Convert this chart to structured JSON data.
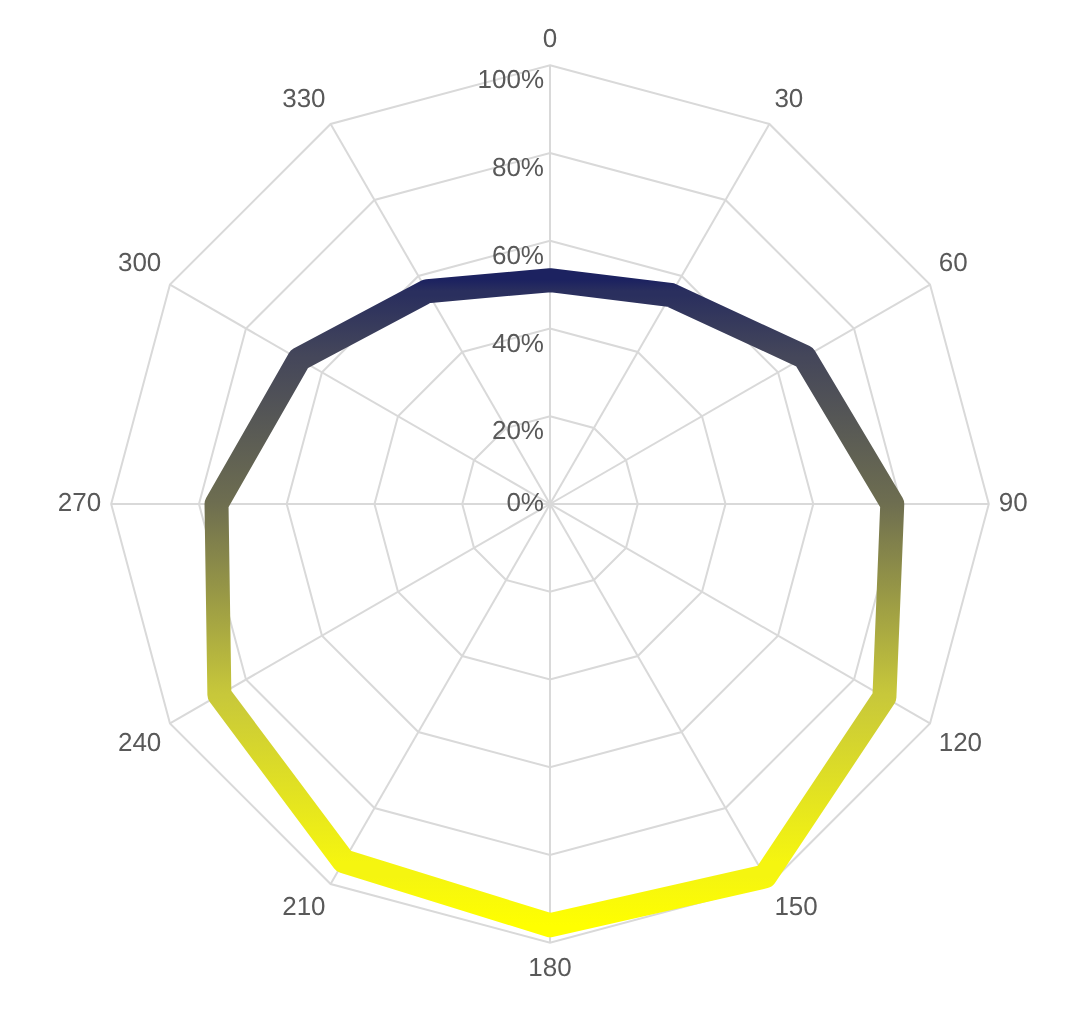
{
  "chart_data": {
    "type": "radar",
    "categories": [
      "0",
      "30",
      "60",
      "90",
      "120",
      "150",
      "180",
      "210",
      "240",
      "270",
      "300",
      "330"
    ],
    "series": [
      {
        "colors": [
          "#1c2260",
          "#2a2f5e",
          "#45475a",
          "#6e6e50",
          "#c8c83a",
          "#f5f510",
          "#ffff00",
          "#f5f510",
          "#c8c83a",
          "#6e6e50",
          "#45475a",
          "#2a2f5e"
        ],
        "values": [
          51,
          55,
          67,
          78,
          88,
          98,
          96,
          94,
          87,
          76,
          66,
          56
        ]
      }
    ],
    "ylim": [
      0,
      100
    ],
    "yticks": [
      {
        "value": 0,
        "label": "0%"
      },
      {
        "value": 20,
        "label": "20%"
      },
      {
        "value": 40,
        "label": "40%"
      },
      {
        "value": 60,
        "label": "60%"
      },
      {
        "value": 80,
        "label": "80%"
      },
      {
        "value": 100,
        "label": "100%"
      }
    ],
    "grid": true,
    "legend": false,
    "marker": "none",
    "line_style": "solid"
  }
}
